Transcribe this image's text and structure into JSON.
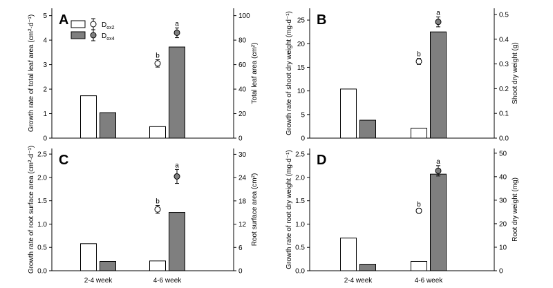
{
  "figure": {
    "x_categories": [
      "2-4 week",
      "4-6 week"
    ],
    "legend": [
      {
        "base": "D",
        "sub": "ox2",
        "marker": "open-circle",
        "bar": "white"
      },
      {
        "base": "D",
        "sub": "ox4",
        "marker": "filled-circle",
        "bar": "gray"
      }
    ]
  },
  "colors": {
    "bar_white": "#ffffff",
    "bar_gray": "#7f7f7f",
    "circle_filled": "#7f7f7f",
    "axis": "#000000"
  },
  "chart_data": [
    {
      "id": "A",
      "type": "bar",
      "categories": [
        "2-4 week",
        "4-6 week"
      ],
      "left_axis": {
        "label": "Growth rate of total leaf area (cm²·d⁻¹)",
        "ylim": [
          0,
          5.3
        ],
        "ticks": [
          0,
          1,
          2,
          3,
          4,
          5
        ]
      },
      "right_axis": {
        "label": "Total leaf area (cm²)",
        "ylim": [
          0,
          106
        ],
        "ticks": [
          0,
          20,
          40,
          60,
          80,
          100
        ]
      },
      "series": [
        {
          "name": "Dox2",
          "axis": "left",
          "values": [
            1.73,
            0.47
          ]
        },
        {
          "name": "Dox4",
          "axis": "left",
          "values": [
            1.04,
            3.72
          ]
        }
      ],
      "points": [
        {
          "name": "Dox2",
          "axis": "right",
          "category": "4-6 week",
          "value": 61,
          "err": 3,
          "label": "b"
        },
        {
          "name": "Dox4",
          "axis": "right",
          "category": "4-6 week",
          "value": 86,
          "err": 4,
          "label": "a"
        }
      ]
    },
    {
      "id": "B",
      "type": "bar",
      "categories": [
        "2-4 week",
        "4-6 week"
      ],
      "left_axis": {
        "label": "Growth rate of shoot dry weight (mg·d⁻¹)",
        "ylim": [
          0,
          27.5
        ],
        "ticks": [
          0,
          5,
          10,
          15,
          20,
          25
        ]
      },
      "right_axis": {
        "label": "Shoot dry weight (g)",
        "ylim": [
          0,
          0.525
        ],
        "ticks": [
          0.0,
          0.1,
          0.2,
          0.3,
          0.4,
          0.5
        ]
      },
      "series": [
        {
          "name": "Dox2",
          "axis": "left",
          "values": [
            10.4,
            2.1
          ]
        },
        {
          "name": "Dox4",
          "axis": "left",
          "values": [
            3.8,
            22.5
          ]
        }
      ],
      "points": [
        {
          "name": "Dox2",
          "axis": "right",
          "category": "4-6 week",
          "value": 0.31,
          "err": 0.012,
          "label": "b"
        },
        {
          "name": "Dox4",
          "axis": "right",
          "category": "4-6 week",
          "value": 0.47,
          "err": 0.02,
          "label": "a"
        }
      ]
    },
    {
      "id": "C",
      "type": "bar",
      "categories": [
        "2-4 week",
        "4-6 week"
      ],
      "left_axis": {
        "label": "Growth rate of root surface area (cm²·d⁻¹)",
        "ylim": [
          0,
          2.62
        ],
        "ticks": [
          0.0,
          0.5,
          1.0,
          1.5,
          2.0,
          2.5
        ]
      },
      "right_axis": {
        "label": "Root surface area (cm²)",
        "ylim": [
          0,
          31.5
        ],
        "ticks": [
          0,
          6,
          12,
          18,
          24,
          30
        ]
      },
      "series": [
        {
          "name": "Dox2",
          "axis": "left",
          "values": [
            0.58,
            0.21
          ]
        },
        {
          "name": "Dox4",
          "axis": "left",
          "values": [
            0.2,
            1.25
          ]
        }
      ],
      "points": [
        {
          "name": "Dox2",
          "axis": "right",
          "category": "4-6 week",
          "value": 15.8,
          "err": 1.0,
          "label": "b"
        },
        {
          "name": "Dox4",
          "axis": "right",
          "category": "4-6 week",
          "value": 24.3,
          "err": 1.8,
          "label": "a"
        }
      ]
    },
    {
      "id": "D",
      "type": "bar",
      "categories": [
        "2-4 week",
        "4-6 week"
      ],
      "left_axis": {
        "label": "Growth rate of root dry weight (mg·d⁻¹)",
        "ylim": [
          0,
          2.62
        ],
        "ticks": [
          0.0,
          0.5,
          1.0,
          1.5,
          2.0,
          2.5
        ]
      },
      "right_axis": {
        "label": "Root dry weight (mg)",
        "ylim": [
          0,
          52
        ],
        "ticks": [
          0,
          10,
          20,
          30,
          40,
          50
        ]
      },
      "series": [
        {
          "name": "Dox2",
          "axis": "left",
          "values": [
            0.7,
            0.2
          ]
        },
        {
          "name": "Dox4",
          "axis": "left",
          "values": [
            0.14,
            2.07
          ]
        }
      ],
      "points": [
        {
          "name": "Dox2",
          "axis": "right",
          "category": "4-6 week",
          "value": 25.5,
          "err": 1.0,
          "label": "b"
        },
        {
          "name": "Dox4",
          "axis": "right",
          "category": "4-6 week",
          "value": 42.5,
          "err": 2.2,
          "label": "a"
        }
      ]
    }
  ]
}
